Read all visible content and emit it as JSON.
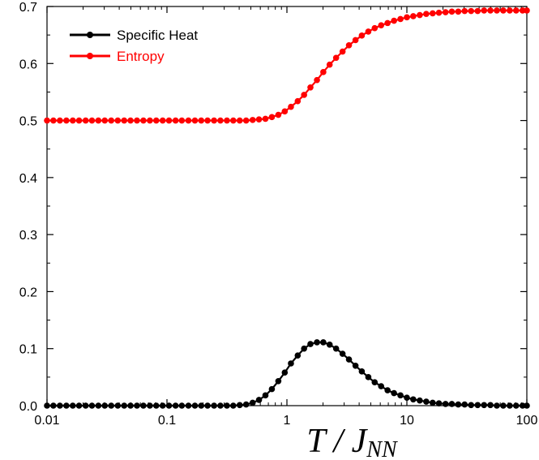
{
  "chart_data": {
    "type": "line",
    "xscale": "log",
    "xlim": [
      0.01,
      100
    ],
    "ylim": [
      0.0,
      0.7
    ],
    "xticks": [
      {
        "value": 0.01,
        "label": "0.01"
      },
      {
        "value": 0.1,
        "label": "0.1"
      },
      {
        "value": 1,
        "label": "1"
      },
      {
        "value": 10,
        "label": "10"
      },
      {
        "value": 100,
        "label": "100"
      }
    ],
    "yticks": [
      {
        "value": 0.0,
        "label": "0.0"
      },
      {
        "value": 0.1,
        "label": "0.1"
      },
      {
        "value": 0.2,
        "label": "0.2"
      },
      {
        "value": 0.3,
        "label": "0.3"
      },
      {
        "value": 0.4,
        "label": "0.4"
      },
      {
        "value": 0.5,
        "label": "0.5"
      },
      {
        "value": 0.6,
        "label": "0.6"
      },
      {
        "value": 0.7,
        "label": "0.7"
      }
    ],
    "xlabel": {
      "main": "T / J",
      "subscript": "NN"
    },
    "ylabel": "",
    "grid": false,
    "legend": "top-left",
    "series": [
      {
        "name": "Specific Heat",
        "color": "#000000",
        "marker": "circle",
        "x": [
          0.01,
          0.0113,
          0.0128,
          0.0145,
          0.0164,
          0.0185,
          0.021,
          0.0237,
          0.0268,
          0.0303,
          0.0343,
          0.0389,
          0.044,
          0.0497,
          0.0562,
          0.0636,
          0.072,
          0.0814,
          0.0921,
          0.104,
          0.118,
          0.133,
          0.151,
          0.171,
          0.193,
          0.218,
          0.247,
          0.279,
          0.316,
          0.357,
          0.404,
          0.457,
          0.518,
          0.585,
          0.662,
          0.749,
          0.848,
          0.959,
          1.08,
          1.23,
          1.39,
          1.57,
          1.78,
          2.01,
          2.27,
          2.57,
          2.91,
          3.29,
          3.73,
          4.21,
          4.77,
          5.39,
          6.1,
          6.9,
          7.81,
          8.84,
          10.0,
          11.3,
          12.8,
          14.5,
          16.4,
          18.5,
          21.0,
          23.7,
          26.8,
          30.3,
          34.3,
          38.9,
          44.0,
          49.7,
          56.2,
          63.6,
          72.0,
          81.4,
          92.1,
          100.0
        ],
        "y": [
          0.0,
          0.0,
          0.0,
          0.0,
          0.0,
          0.0,
          0.0,
          0.0,
          0.0,
          0.0,
          0.0,
          0.0,
          0.0,
          0.0,
          0.0,
          0.0,
          0.0,
          0.0,
          0.0,
          0.0,
          0.0,
          0.0,
          0.0,
          0.0,
          0.0,
          0.0,
          0.0,
          0.0,
          0.0,
          0.0,
          0.001,
          0.002,
          0.005,
          0.01,
          0.018,
          0.029,
          0.043,
          0.058,
          0.074,
          0.088,
          0.1,
          0.108,
          0.111,
          0.111,
          0.107,
          0.1,
          0.091,
          0.081,
          0.07,
          0.06,
          0.05,
          0.041,
          0.034,
          0.027,
          0.022,
          0.018,
          0.014,
          0.011,
          0.009,
          0.007,
          0.005,
          0.004,
          0.003,
          0.003,
          0.002,
          0.002,
          0.001,
          0.001,
          0.001,
          0.001,
          0.0,
          0.0,
          0.0,
          0.0,
          0.0,
          0.0
        ]
      },
      {
        "name": "Entropy",
        "color": "#ff0000",
        "marker": "circle",
        "x": [
          0.01,
          0.0113,
          0.0128,
          0.0145,
          0.0164,
          0.0185,
          0.021,
          0.0237,
          0.0268,
          0.0303,
          0.0343,
          0.0389,
          0.044,
          0.0497,
          0.0562,
          0.0636,
          0.072,
          0.0814,
          0.0921,
          0.104,
          0.118,
          0.133,
          0.151,
          0.171,
          0.193,
          0.218,
          0.247,
          0.279,
          0.316,
          0.357,
          0.404,
          0.457,
          0.518,
          0.585,
          0.662,
          0.749,
          0.848,
          0.959,
          1.08,
          1.23,
          1.39,
          1.57,
          1.78,
          2.01,
          2.27,
          2.57,
          2.91,
          3.29,
          3.73,
          4.21,
          4.77,
          5.39,
          6.1,
          6.9,
          7.81,
          8.84,
          10.0,
          11.3,
          12.8,
          14.5,
          16.4,
          18.5,
          21.0,
          23.7,
          26.8,
          30.3,
          34.3,
          38.9,
          44.0,
          49.7,
          56.2,
          63.6,
          72.0,
          81.4,
          92.1,
          100.0
        ],
        "y": [
          0.5,
          0.5,
          0.5,
          0.5,
          0.5,
          0.5,
          0.5,
          0.5,
          0.5,
          0.5,
          0.5,
          0.5,
          0.5,
          0.5,
          0.5,
          0.5,
          0.5,
          0.5,
          0.5,
          0.5,
          0.5,
          0.5,
          0.5,
          0.5,
          0.5,
          0.5,
          0.5,
          0.5,
          0.5,
          0.5,
          0.5,
          0.5,
          0.501,
          0.502,
          0.503,
          0.506,
          0.51,
          0.516,
          0.524,
          0.534,
          0.545,
          0.558,
          0.571,
          0.585,
          0.598,
          0.61,
          0.621,
          0.632,
          0.641,
          0.649,
          0.656,
          0.662,
          0.667,
          0.671,
          0.675,
          0.678,
          0.681,
          0.683,
          0.685,
          0.687,
          0.688,
          0.689,
          0.69,
          0.691,
          0.691,
          0.692,
          0.692,
          0.692,
          0.693,
          0.693,
          0.693,
          0.693,
          0.693,
          0.693,
          0.693,
          0.693
        ]
      }
    ]
  }
}
